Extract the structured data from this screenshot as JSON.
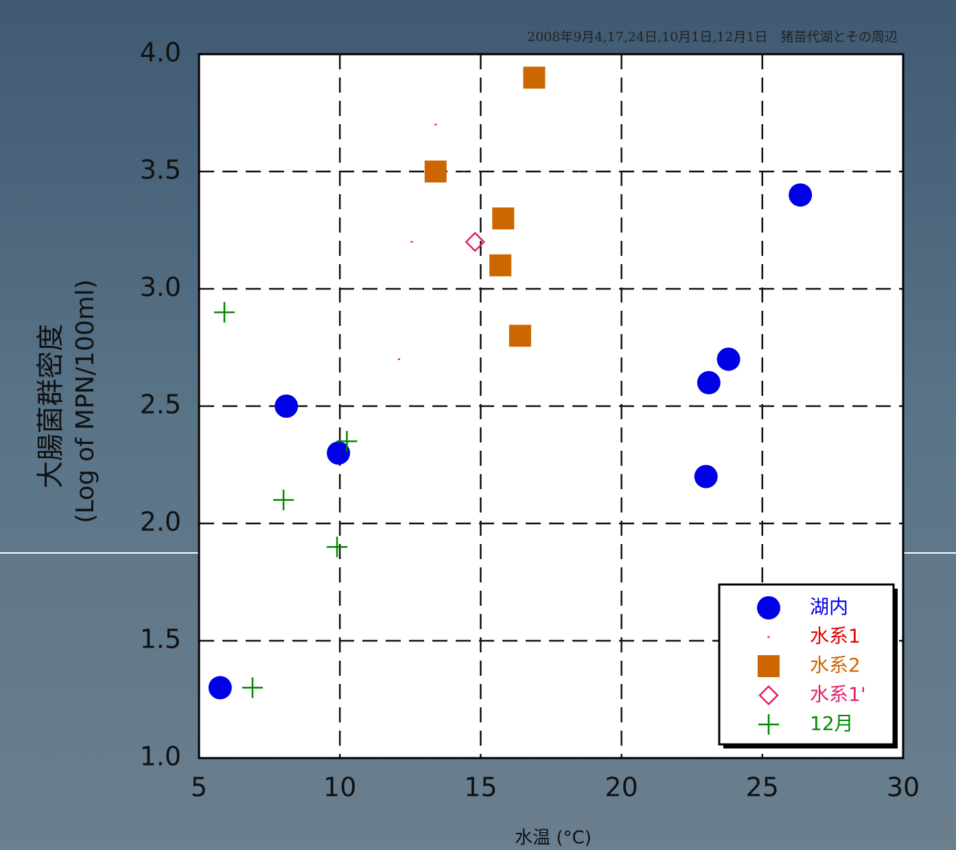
{
  "chart_data": {
    "type": "scatter",
    "title": "2008年9月4,17,24日,10月1日,12月1日　猪苗代湖とその周辺",
    "ylabel": [
      "大腸菌群密度",
      "(Log of MPN/100ml)"
    ],
    "xlabel": "水温 (°C)",
    "xlim": [
      5,
      30
    ],
    "xticks": [
      5,
      10,
      15,
      20,
      25,
      30
    ],
    "ylim": [
      1.0,
      4.0
    ],
    "yticks": [
      {
        "value": 1.0,
        "label": "1.0"
      },
      {
        "value": 1.5,
        "label": "1.5"
      },
      {
        "value": 2.0,
        "label": "2.0"
      },
      {
        "value": 2.5,
        "label": "2.5"
      },
      {
        "value": 3.0,
        "label": "3.0"
      },
      {
        "value": 3.5,
        "label": "3.5"
      },
      {
        "value": 4.0,
        "label": "4.0"
      }
    ],
    "grid": true,
    "legend": "lower right",
    "series": [
      {
        "name": "湖内",
        "color": "#0000e6",
        "marker": "circle",
        "x": [
          5.75,
          8.1,
          9.95,
          23.0,
          23.1,
          23.8,
          26.35
        ],
        "values": [
          1.3,
          2.5,
          2.3,
          2.2,
          2.6,
          2.7,
          3.4
        ]
      },
      {
        "name": "水系1",
        "color": "#e00000",
        "marker": "dot",
        "x": [
          13.4,
          14.4,
          18.5,
          12.55,
          12.1
        ],
        "values": [
          3.7,
          3.5,
          3.5,
          3.2,
          2.7
        ]
      },
      {
        "name": "水系2",
        "color": "#cc6600",
        "marker": "square",
        "x": [
          16.9,
          13.4,
          15.8,
          15.7,
          16.4
        ],
        "values": [
          3.9,
          3.5,
          3.3,
          3.1,
          2.8
        ]
      },
      {
        "name": "水系1'",
        "color": "#e0206a",
        "marker": "diamond",
        "x": [
          14.8
        ],
        "values": [
          3.2
        ]
      },
      {
        "name": "12月",
        "color": "#008800",
        "marker": "plus",
        "x": [
          5.9,
          10.25,
          8.0,
          9.9,
          6.9
        ],
        "values": [
          2.9,
          2.35,
          2.1,
          1.9,
          1.3
        ]
      }
    ]
  }
}
